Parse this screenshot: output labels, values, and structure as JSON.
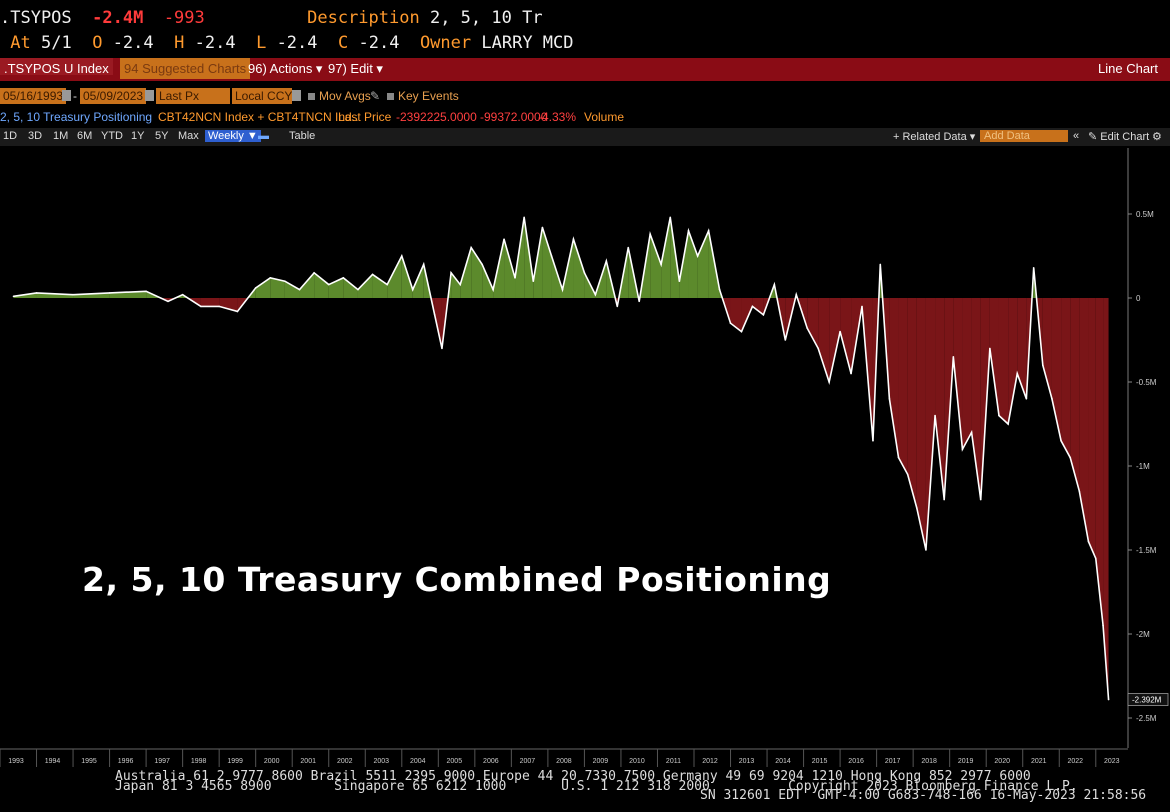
{
  "header": {
    "ticker": ".TSYPOS",
    "last_change": "-2.4M",
    "net_change": "-993",
    "description_label": "Description",
    "description_value": "2, 5, 10 Tr",
    "at_label": "At",
    "at_value": "5/1",
    "open_label": "O",
    "open_value": "-2.4",
    "high_label": "H",
    "high_value": "-2.4",
    "low_label": "L",
    "low_value": "-2.4",
    "close_label": "C",
    "close_value": "-2.4",
    "owner_label": "Owner",
    "owner_value": "LARRY MCD"
  },
  "menubar": {
    "ticker_field": ".TSYPOS U Index",
    "suggested_charts": "94 Suggested Charts",
    "actions": "96) Actions ▾",
    "edit": "97) Edit ▾",
    "chart_type": "Line Chart"
  },
  "controls": {
    "start_date": "05/16/1993",
    "end_date": "05/09/2023",
    "price_field": "Last Px",
    "currency": "Local CCY",
    "mov_avgs": "Mov Avgs",
    "key_events": "Key Events"
  },
  "legend": {
    "series_name": "2, 5, 10 Treasury Positioning",
    "formula": "CBT42NCN Index + CBT4TNCN Ind..",
    "last_price_label": "Last Price",
    "last_price_value": "-2392225.0000",
    "change_value": "-99372.0000",
    "change_pct": "-4.33%",
    "volume_label": "Volume"
  },
  "ranges": {
    "buttons": [
      "1D",
      "3D",
      "1M",
      "6M",
      "YTD",
      "1Y",
      "5Y",
      "Max"
    ],
    "weekly": "Weekly ▼",
    "table": "Table",
    "related_data": "+ Related Data ▾",
    "add_data": "Add Data",
    "edit_chart": "✎ Edit Chart"
  },
  "overlay_title": "2, 5, 10 Treasury Combined Positioning",
  "footer": {
    "line1": "Australia 61 2 9777 8600 Brazil 5511 2395 9000 Europe 44 20 7330 7500 Germany 49 69 9204 1210 Hong Kong 852 2977 6000",
    "line2": "Japan 81 3 4565 8900        Singapore 65 6212 1000       U.S. 1 212 318 2000          Copyright 2023 Bloomberg Finance L.P.",
    "line3": "SN 312601 EDT  GMT-4:00 G683-748-166 16-May-2023 21:58:56"
  },
  "colors": {
    "positive_fill": "#5c8a2c",
    "negative_fill": "#7a1518",
    "line": "#ffffff",
    "menubar": "#8a0c15",
    "accent": "#ff9a2e"
  },
  "chart_data": {
    "type": "area",
    "ylabel": "",
    "ylim": [
      -2600000,
      800000
    ],
    "y_ticks": [
      0.5,
      0,
      -0.5,
      -1,
      -1.5,
      -2,
      -2.5
    ],
    "y_tick_labels": [
      "0.5M",
      "0",
      "-0.5M",
      "-1M",
      "-1.5M",
      "-2M",
      "-2.5M"
    ],
    "last_value_label": "-2.392M",
    "x_ticks": [
      "1993",
      "1994",
      "1995",
      "1996",
      "1997",
      "1998",
      "1999",
      "2000",
      "2001",
      "2002",
      "2003",
      "2004",
      "2005",
      "2006",
      "2007",
      "2008",
      "2009",
      "2010",
      "2011",
      "2012",
      "2013",
      "2014",
      "2015",
      "2016",
      "2017",
      "2018",
      "2019",
      "2020",
      "2021",
      "2022",
      "2023"
    ],
    "series": [
      {
        "name": "2, 5, 10 Treasury Positioning",
        "x": [
          1993.37,
          1994.0,
          1995.0,
          1996.0,
          1997.0,
          1997.6,
          1998.0,
          1998.5,
          1999.0,
          1999.5,
          2000.0,
          2000.4,
          2000.8,
          2001.2,
          2001.6,
          2002.0,
          2002.4,
          2002.8,
          2003.2,
          2003.6,
          2004.0,
          2004.3,
          2004.6,
          2004.9,
          2005.1,
          2005.35,
          2005.6,
          2005.9,
          2006.2,
          2006.5,
          2006.8,
          2007.1,
          2007.35,
          2007.6,
          2007.85,
          2008.1,
          2008.4,
          2008.7,
          2009.0,
          2009.3,
          2009.6,
          2009.9,
          2010.2,
          2010.5,
          2010.8,
          2011.1,
          2011.35,
          2011.6,
          2011.85,
          2012.1,
          2012.4,
          2012.7,
          2013.0,
          2013.3,
          2013.6,
          2013.9,
          2014.2,
          2014.5,
          2014.8,
          2015.1,
          2015.4,
          2015.7,
          2016.0,
          2016.3,
          2016.6,
          2016.9,
          2017.1,
          2017.35,
          2017.6,
          2017.85,
          2018.1,
          2018.35,
          2018.6,
          2018.85,
          2019.1,
          2019.35,
          2019.6,
          2019.85,
          2020.1,
          2020.35,
          2020.6,
          2020.85,
          2021.1,
          2021.3,
          2021.55,
          2021.8,
          2022.05,
          2022.3,
          2022.55,
          2022.8,
          2023.0,
          2023.2,
          2023.35
        ],
        "values": [
          0.01,
          0.03,
          0.02,
          0.03,
          0.04,
          -0.02,
          0.02,
          -0.05,
          -0.05,
          -0.08,
          0.06,
          0.12,
          0.1,
          0.05,
          0.15,
          0.08,
          0.12,
          0.05,
          0.14,
          0.08,
          0.25,
          0.05,
          0.2,
          -0.1,
          -0.3,
          0.15,
          0.08,
          0.3,
          0.2,
          0.05,
          0.35,
          0.12,
          0.48,
          0.1,
          0.42,
          0.25,
          0.05,
          0.35,
          0.15,
          0.02,
          0.22,
          -0.05,
          0.3,
          -0.02,
          0.38,
          0.2,
          0.48,
          0.1,
          0.4,
          0.25,
          0.4,
          0.05,
          -0.15,
          -0.2,
          -0.05,
          -0.1,
          0.08,
          -0.25,
          0.02,
          -0.18,
          -0.3,
          -0.5,
          -0.2,
          -0.45,
          -0.05,
          -0.85,
          0.2,
          -0.6,
          -0.95,
          -1.05,
          -1.25,
          -1.5,
          -0.7,
          -1.2,
          -0.35,
          -0.9,
          -0.8,
          -1.2,
          -0.3,
          -0.7,
          -0.75,
          -0.45,
          -0.6,
          0.18,
          -0.4,
          -0.6,
          -0.85,
          -0.95,
          -1.15,
          -1.45,
          -1.55,
          -1.95,
          -2.39
        ]
      }
    ]
  }
}
